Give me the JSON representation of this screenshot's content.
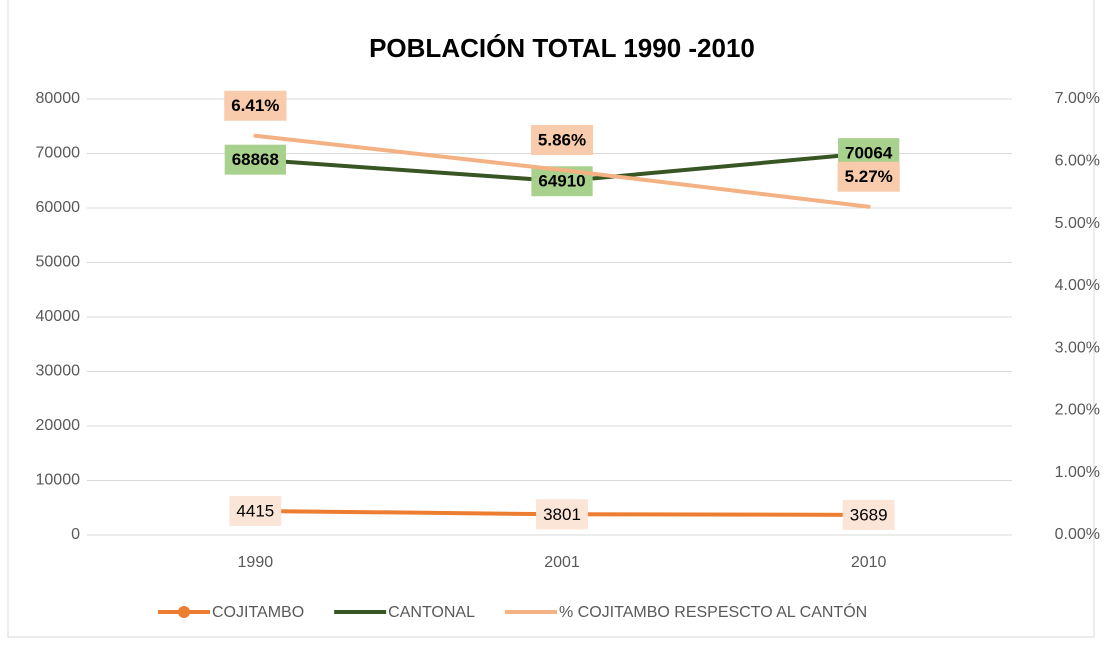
{
  "chart_data": {
    "type": "line",
    "title": "POBLACIÓN TOTAL 1990 -2010",
    "categories": [
      "1990",
      "2001",
      "2010"
    ],
    "series": [
      {
        "name": "COJITAMBO",
        "color": "#ed7d31",
        "values": [
          4415,
          3801,
          3689
        ]
      },
      {
        "name": "CANTONAL",
        "color": "#375623",
        "values": [
          68868,
          64910,
          70064
        ]
      },
      {
        "name": "% COJITAMBO RESPESCTO AL CANTÓN",
        "color": "#f4b183",
        "axis": "y2",
        "values": [
          6.41,
          5.86,
          5.27
        ],
        "value_labels": [
          "6.41%",
          "5.86%",
          "5.27%"
        ]
      }
    ],
    "ylim": [
      0,
      80000
    ],
    "yticks": [
      0,
      10000,
      20000,
      30000,
      40000,
      50000,
      60000,
      70000,
      80000
    ],
    "y2lim": [
      0,
      7
    ],
    "y2ticks": [
      {
        "value": 0,
        "label": "0.00%"
      },
      {
        "value": 1,
        "label": "1.00%"
      },
      {
        "value": 2,
        "label": "2.00%"
      },
      {
        "value": 3,
        "label": "3.00%"
      },
      {
        "value": 4,
        "label": "4.00%"
      },
      {
        "value": 5,
        "label": "5.00%"
      },
      {
        "value": 6,
        "label": "6.00%"
      },
      {
        "value": 7,
        "label": "7.00%"
      }
    ],
    "grid": true,
    "legend": "bottom"
  }
}
